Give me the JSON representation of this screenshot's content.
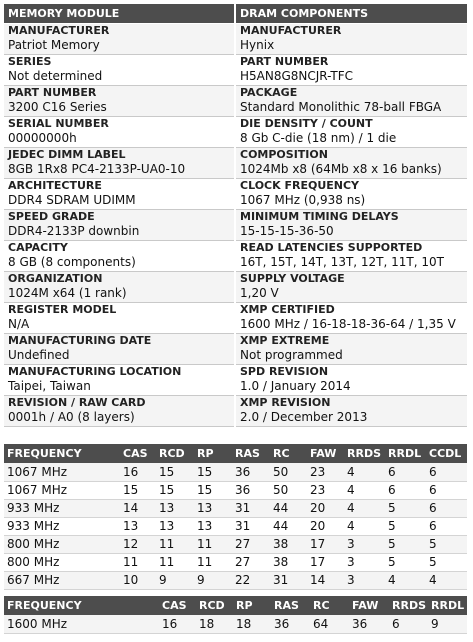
{
  "headers": {
    "left": "MEMORY MODULE",
    "right": "DRAM COMPONENTS"
  },
  "memory_module": [
    {
      "label": "MANUFACTURER",
      "value": "Patriot Memory"
    },
    {
      "label": "SERIES",
      "value": "Not determined"
    },
    {
      "label": "PART NUMBER",
      "value": "3200 C16 Series"
    },
    {
      "label": "SERIAL NUMBER",
      "value": "00000000h"
    },
    {
      "label": "JEDEC DIMM LABEL",
      "value": "8GB 1Rx8 PC4-2133P-UA0-10"
    },
    {
      "label": "ARCHITECTURE",
      "value": "DDR4 SDRAM UDIMM"
    },
    {
      "label": "SPEED GRADE",
      "value": "DDR4-2133P downbin"
    },
    {
      "label": "CAPACITY",
      "value": "8 GB (8 components)"
    },
    {
      "label": "ORGANIZATION",
      "value": "1024M x64 (1 rank)"
    },
    {
      "label": "REGISTER MODEL",
      "value": "N/A"
    },
    {
      "label": "MANUFACTURING DATE",
      "value": "Undefined"
    },
    {
      "label": "MANUFACTURING LOCATION",
      "value": "Taipei, Taiwan"
    },
    {
      "label": "REVISION / RAW CARD",
      "value": "0001h / A0 (8 layers)"
    }
  ],
  "dram_components": [
    {
      "label": "MANUFACTURER",
      "value": "Hynix"
    },
    {
      "label": "PART NUMBER",
      "value": "H5AN8G8NCJR-TFC"
    },
    {
      "label": "PACKAGE",
      "value": "Standard Monolithic 78-ball FBGA"
    },
    {
      "label": "DIE DENSITY / COUNT",
      "value": "8 Gb C-die (18 nm) / 1 die"
    },
    {
      "label": "COMPOSITION",
      "value": "1024Mb x8 (64Mb x8 x 16 banks)"
    },
    {
      "label": "CLOCK FREQUENCY",
      "value": "1067 MHz (0,938 ns)"
    },
    {
      "label": "MINIMUM TIMING DELAYS",
      "value": "15-15-15-36-50"
    },
    {
      "label": "READ LATENCIES SUPPORTED",
      "value": "16T, 15T, 14T, 13T, 12T, 11T, 10T"
    },
    {
      "label": "SUPPLY VOLTAGE",
      "value": "1,20 V"
    },
    {
      "label": "XMP CERTIFIED",
      "value": "1600 MHz / 16-18-18-36-64 / 1,35 V"
    },
    {
      "label": "XMP EXTREME",
      "value": "Not programmed"
    },
    {
      "label": "SPD REVISION",
      "value": "1.0 / January 2014"
    },
    {
      "label": "XMP REVISION",
      "value": "2.0 / December 2013"
    }
  ],
  "jedec_timings": {
    "columns": [
      "FREQUENCY",
      "CAS",
      "RCD",
      "RP",
      "RAS",
      "RC",
      "FAW",
      "RRDS",
      "RRDL",
      "CCDL"
    ],
    "rows": [
      [
        "1067 MHz",
        "16",
        "15",
        "15",
        "36",
        "50",
        "23",
        "4",
        "6",
        "6"
      ],
      [
        "1067 MHz",
        "15",
        "15",
        "15",
        "36",
        "50",
        "23",
        "4",
        "6",
        "6"
      ],
      [
        "933 MHz",
        "14",
        "13",
        "13",
        "31",
        "44",
        "20",
        "4",
        "5",
        "6"
      ],
      [
        "933 MHz",
        "13",
        "13",
        "13",
        "31",
        "44",
        "20",
        "4",
        "5",
        "6"
      ],
      [
        "800 MHz",
        "12",
        "11",
        "11",
        "27",
        "38",
        "17",
        "3",
        "5",
        "5"
      ],
      [
        "800 MHz",
        "11",
        "11",
        "11",
        "27",
        "38",
        "17",
        "3",
        "5",
        "5"
      ],
      [
        "667 MHz",
        "10",
        "9",
        "9",
        "22",
        "31",
        "14",
        "3",
        "4",
        "4"
      ]
    ]
  },
  "xmp_timings": {
    "columns": [
      "FREQUENCY",
      "CAS",
      "RCD",
      "RP",
      "RAS",
      "RC",
      "FAW",
      "RRDS",
      "RRDL"
    ],
    "rows": [
      [
        "1600 MHz",
        "16",
        "18",
        "18",
        "36",
        "64",
        "36",
        "6",
        "9"
      ]
    ]
  }
}
